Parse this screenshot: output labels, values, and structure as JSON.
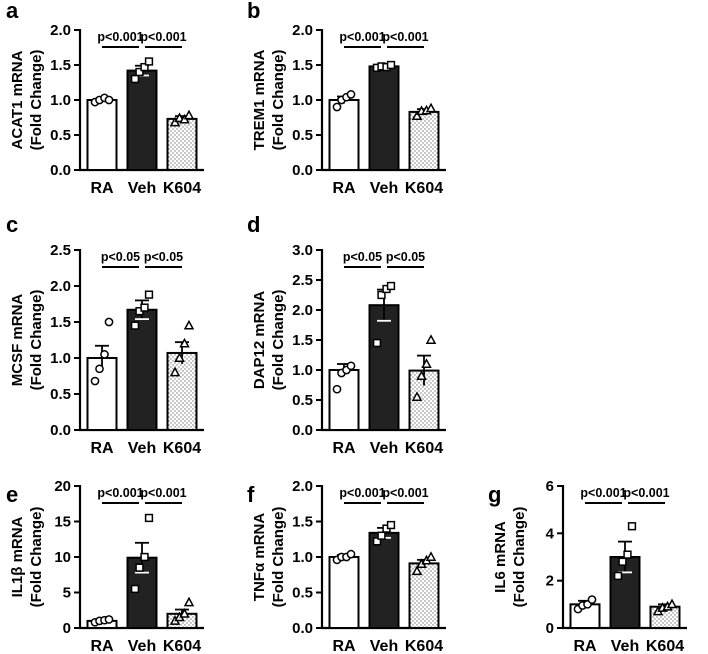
{
  "chart_data": [
    {
      "type": "bar",
      "panel": "a",
      "ylabel_line1": "ACAT1 mRNA",
      "ylabel_line2": "(Fold Change)",
      "categories": [
        "RA",
        "Veh",
        "K604"
      ],
      "values": [
        1.0,
        1.42,
        0.73
      ],
      "errors": [
        0.02,
        0.07,
        0.04
      ],
      "points": [
        [
          0.97,
          1.0,
          1.03,
          1.0
        ],
        [
          1.3,
          1.4,
          1.47,
          1.55
        ],
        [
          0.68,
          0.74,
          0.72,
          0.78
        ]
      ],
      "ylim": [
        0,
        2.0
      ],
      "yticks": [
        "0.0",
        "0.5",
        "1.0",
        "1.5",
        "2.0"
      ],
      "significance": [
        "p<0.001",
        "p<0.001"
      ]
    },
    {
      "type": "bar",
      "panel": "b",
      "ylabel_line1": "TREM1 mRNA",
      "ylabel_line2": "(Fold Change)",
      "categories": [
        "RA",
        "Veh",
        "K604"
      ],
      "values": [
        1.0,
        1.48,
        0.83
      ],
      "errors": [
        0.05,
        0.02,
        0.04
      ],
      "points": [
        [
          0.9,
          1.0,
          1.04,
          1.08
        ],
        [
          1.46,
          1.48,
          1.47,
          1.5
        ],
        [
          0.77,
          0.84,
          0.85,
          0.88
        ]
      ],
      "ylim": [
        0,
        2.0
      ],
      "yticks": [
        "0.0",
        "0.5",
        "1.0",
        "1.5",
        "2.0"
      ],
      "significance": [
        "p<0.001",
        "p<0.001"
      ]
    },
    {
      "type": "bar",
      "panel": "c",
      "ylabel_line1": "MCSF mRNA",
      "ylabel_line2": "(Fold Change)",
      "categories": [
        "RA",
        "Veh",
        "K604"
      ],
      "values": [
        1.0,
        1.67,
        1.07
      ],
      "errors": [
        0.17,
        0.13,
        0.15
      ],
      "points": [
        [
          0.68,
          0.85,
          1.05,
          1.5
        ],
        [
          1.45,
          1.65,
          1.7,
          1.88
        ],
        [
          0.8,
          1.0,
          1.2,
          1.45
        ]
      ],
      "ylim": [
        0,
        2.5
      ],
      "yticks": [
        "0.0",
        "0.5",
        "1.0",
        "1.5",
        "2.0",
        "2.5"
      ],
      "significance": [
        "p<0.05",
        "p<0.05"
      ]
    },
    {
      "type": "bar",
      "panel": "d",
      "ylabel_line1": "DAP12 mRNA",
      "ylabel_line2": "(Fold Change)",
      "categories": [
        "RA",
        "Veh",
        "K604"
      ],
      "values": [
        1.0,
        2.08,
        0.99
      ],
      "errors": [
        0.1,
        0.26,
        0.25
      ],
      "points": [
        [
          0.68,
          0.95,
          1.0,
          1.07
        ],
        [
          1.45,
          2.25,
          2.35,
          2.4
        ],
        [
          0.55,
          0.9,
          1.1,
          1.5
        ]
      ],
      "ylim": [
        0,
        3.0
      ],
      "yticks": [
        "0.0",
        "0.5",
        "1.0",
        "1.5",
        "2.0",
        "2.5",
        "3.0"
      ],
      "significance": [
        "p<0.05",
        "p<0.05"
      ]
    },
    {
      "type": "bar",
      "panel": "e",
      "ylabel_line1": "IL1β mRNA",
      "ylabel_line2": "(Fold Change)",
      "categories": [
        "RA",
        "Veh",
        "K604"
      ],
      "values": [
        1.0,
        9.9,
        2.0
      ],
      "errors": [
        0.15,
        2.1,
        0.6
      ],
      "points": [
        [
          0.8,
          1.0,
          1.1,
          1.2
        ],
        [
          5.5,
          8.5,
          10.0,
          15.5
        ],
        [
          1.0,
          1.5,
          2.0,
          3.6
        ]
      ],
      "ylim": [
        0,
        20
      ],
      "yticks": [
        "0",
        "5",
        "10",
        "15",
        "20"
      ],
      "significance": [
        "p<0.001",
        "p<0.001"
      ]
    },
    {
      "type": "bar",
      "panel": "f",
      "ylabel_line1": "TNFα mRNA",
      "ylabel_line2": "(Fold Change)",
      "categories": [
        "RA",
        "Veh",
        "K604"
      ],
      "values": [
        1.0,
        1.34,
        0.91
      ],
      "errors": [
        0.03,
        0.07,
        0.05
      ],
      "points": [
        [
          0.96,
          1.0,
          1.0,
          1.04
        ],
        [
          1.22,
          1.3,
          1.4,
          1.45
        ],
        [
          0.8,
          0.9,
          0.95,
          1.0
        ]
      ],
      "ylim": [
        0,
        2.0
      ],
      "yticks": [
        "0.0",
        "0.5",
        "1.0",
        "1.5",
        "2.0"
      ],
      "significance": [
        "p<0.001",
        "p<0.001"
      ]
    },
    {
      "type": "bar",
      "panel": "g",
      "ylabel_line1": "IL6 mRNA",
      "ylabel_line2": "(Fold Change)",
      "categories": [
        "RA",
        "Veh",
        "K604"
      ],
      "values": [
        1.0,
        3.0,
        0.9
      ],
      "errors": [
        0.15,
        0.65,
        0.1
      ],
      "points": [
        [
          0.8,
          0.95,
          1.0,
          1.2
        ],
        [
          2.2,
          2.8,
          3.1,
          4.3
        ],
        [
          0.7,
          0.85,
          0.9,
          1.0
        ]
      ],
      "ylim": [
        0,
        6
      ],
      "yticks": [
        "0",
        "2",
        "4",
        "6"
      ],
      "significance": [
        "p<0.001",
        "p<0.001"
      ]
    }
  ]
}
